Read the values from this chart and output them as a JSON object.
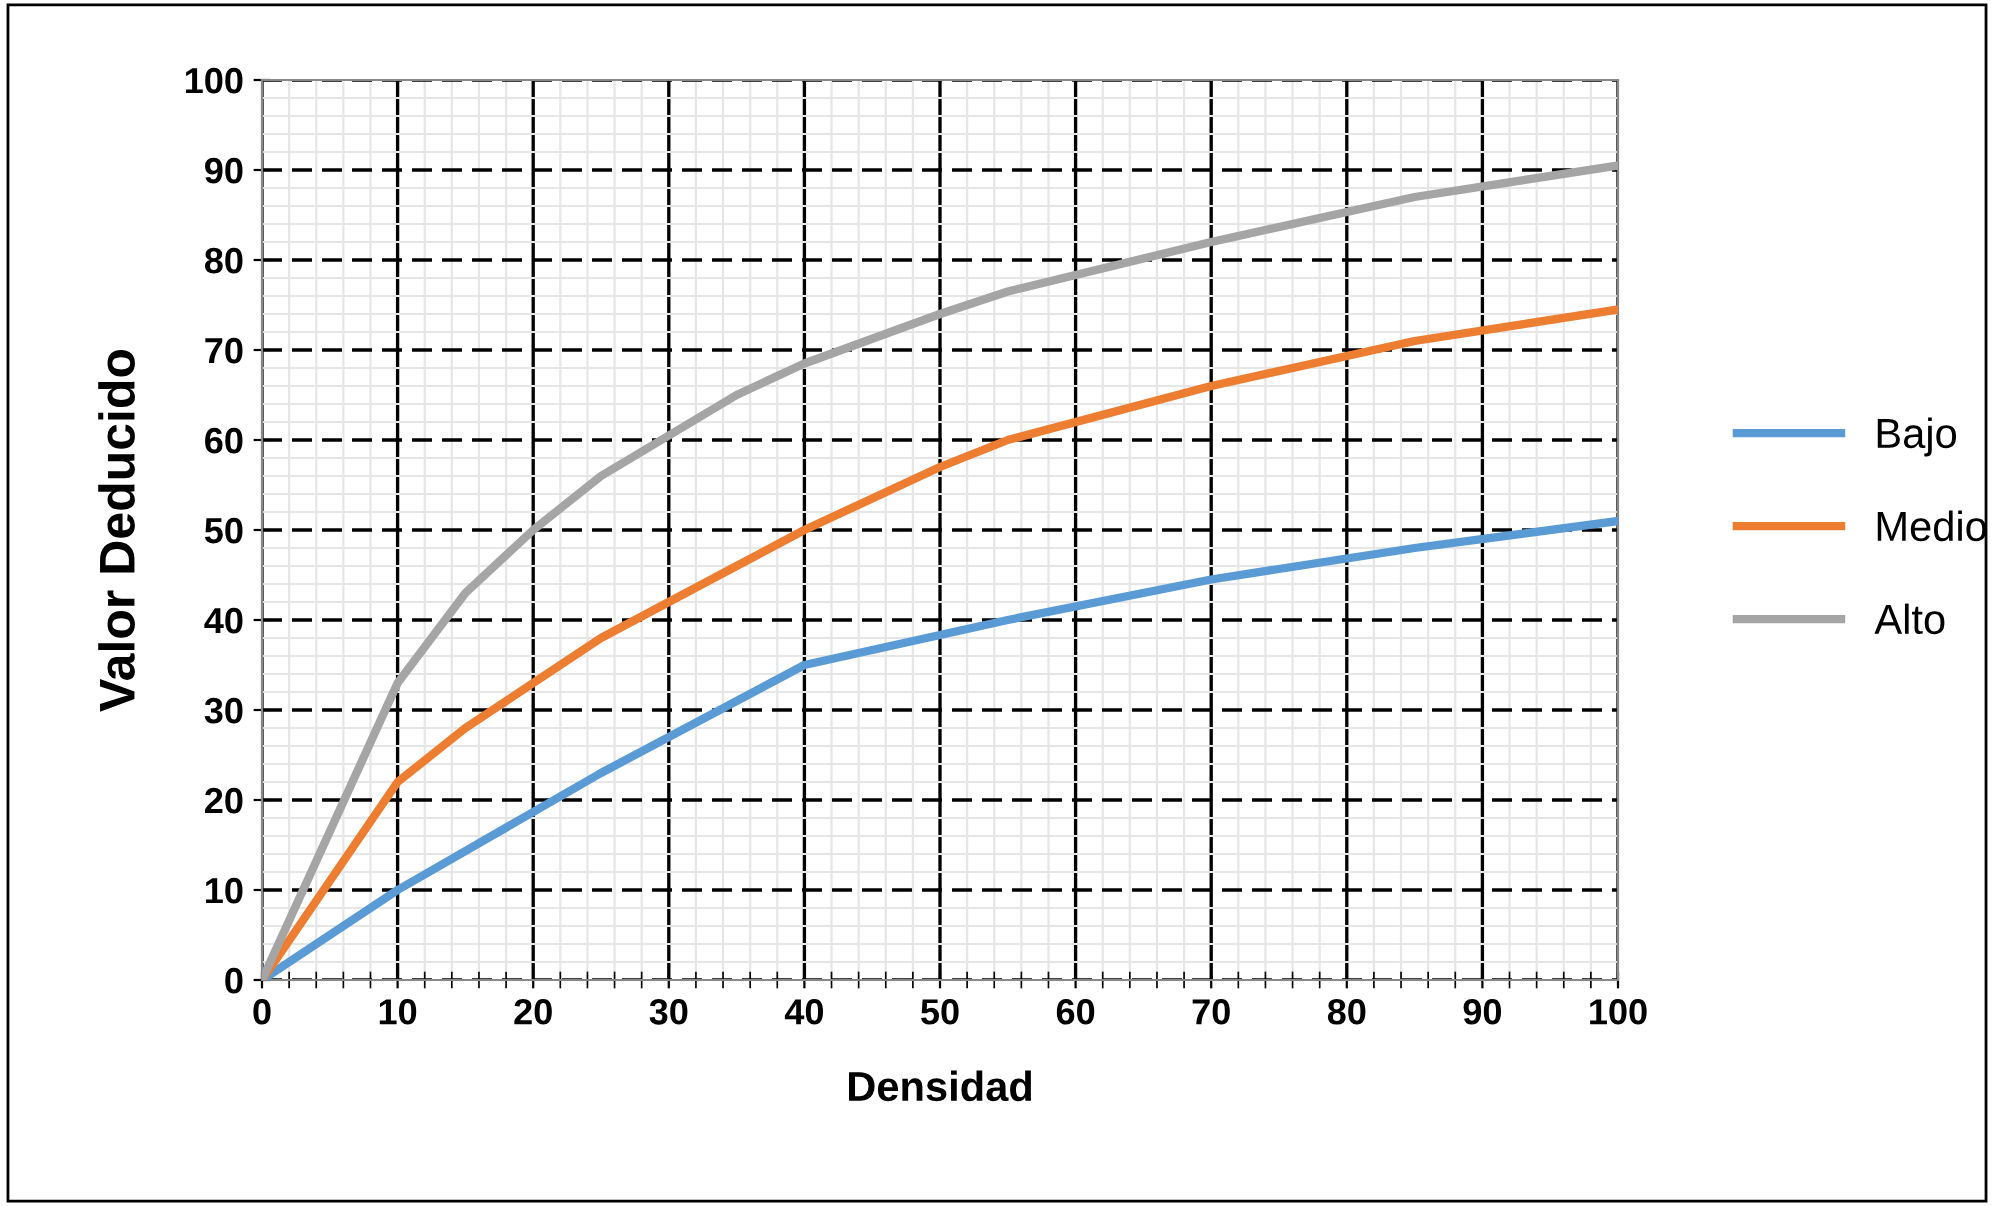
{
  "chart_data": {
    "type": "line",
    "xlabel": "Densidad",
    "ylabel": "Valor Deducido",
    "series": [
      {
        "name": "Bajo",
        "color": "#5b9bd5",
        "x": [
          0,
          10,
          25,
          40,
          55,
          70,
          85,
          100
        ],
        "values": [
          0,
          10,
          23,
          35,
          40,
          44.5,
          48,
          51
        ]
      },
      {
        "name": "Medio",
        "color": "#ed7d31",
        "x": [
          0,
          10,
          15,
          25,
          35,
          40,
          50,
          55,
          70,
          85,
          100
        ],
        "values": [
          0,
          22,
          28,
          38,
          46,
          50,
          57,
          60,
          66,
          71,
          74.5
        ]
      },
      {
        "name": "Alto",
        "color": "#a5a5a5",
        "x": [
          0,
          10,
          15,
          20,
          25,
          35,
          40,
          50,
          55,
          70,
          85,
          100
        ],
        "values": [
          0,
          33,
          43,
          50,
          56,
          65,
          68.5,
          74,
          76.5,
          82,
          87,
          90.5
        ]
      }
    ],
    "xlim": [
      0,
      100
    ],
    "xticks": [
      0,
      10,
      20,
      30,
      40,
      50,
      60,
      70,
      80,
      90,
      100
    ],
    "ylim": [
      0,
      100
    ],
    "yticks": [
      0,
      10,
      20,
      30,
      40,
      50,
      60,
      70,
      80,
      90,
      100
    ],
    "grid": true,
    "legend": "right",
    "marker": "none",
    "line_style": "solid"
  }
}
